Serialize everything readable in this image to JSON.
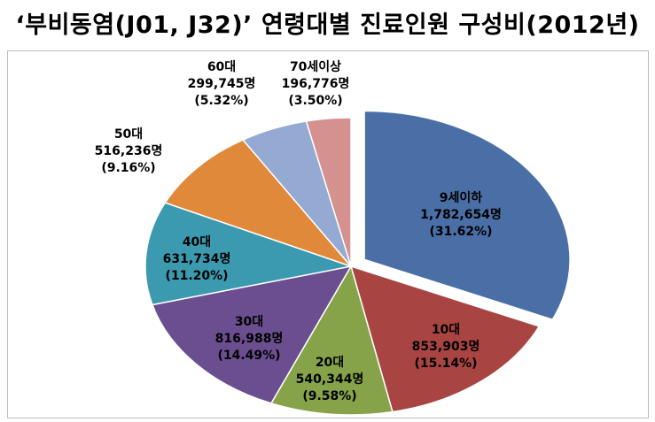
{
  "chart_data": {
    "type": "pie",
    "title": "‘부비동염(J01, J32)’ 연령대별 진료인원 구성비(2012년)",
    "slices": [
      {
        "label": "9세이하",
        "value": 1782654,
        "value_text": "1,782,654명",
        "percent": 31.62,
        "percent_text": "(31.62%)",
        "color": "#4a6fa6",
        "exploded": true
      },
      {
        "label": "10대",
        "value": 853903,
        "value_text": "853,903명",
        "percent": 15.14,
        "percent_text": "(15.14%)",
        "color": "#a84442"
      },
      {
        "label": "20대",
        "value": 540344,
        "value_text": "540,344명",
        "percent": 9.58,
        "percent_text": "(9.58%)",
        "color": "#86a349"
      },
      {
        "label": "30대",
        "value": 816988,
        "value_text": "816,988명",
        "percent": 14.49,
        "percent_text": "(14.49%)",
        "color": "#6b4e8f"
      },
      {
        "label": "40대",
        "value": 631734,
        "value_text": "631,734명",
        "percent": 11.2,
        "percent_text": "(11.20%)",
        "color": "#3b9ab0"
      },
      {
        "label": "50대",
        "value": 516236,
        "value_text": "516,236명",
        "percent": 9.16,
        "percent_text": "(9.16%)",
        "color": "#e0893a"
      },
      {
        "label": "60대",
        "value": 299745,
        "value_text": "299,745명",
        "percent": 5.32,
        "percent_text": "(5.32%)",
        "color": "#94aad2"
      },
      {
        "label": "70세이상",
        "value": 196776,
        "value_text": "196,776명",
        "percent": 3.5,
        "percent_text": "(3.50%)",
        "color": "#d4918f"
      }
    ]
  }
}
